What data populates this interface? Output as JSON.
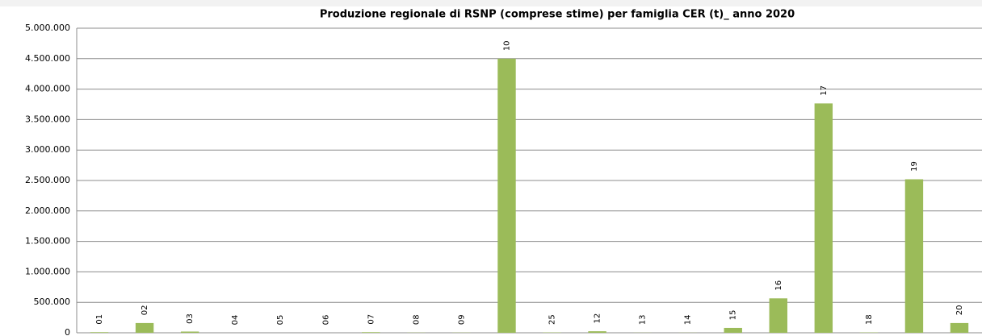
{
  "chart_data": {
    "type": "bar",
    "title": "Produzione regionale di RSNP (comprese stime) per famiglia CER (t)_ anno 2020",
    "categories": [
      "01",
      "02",
      "03",
      "04",
      "05",
      "06",
      "07",
      "08",
      "09",
      "10",
      "25",
      "12",
      "13",
      "14",
      "15",
      "16",
      "17",
      "18",
      "19",
      "20"
    ],
    "values": [
      10000,
      160000,
      20000,
      0,
      0,
      0,
      10000,
      3000,
      3000,
      4500000,
      5000,
      25000,
      2000,
      2000,
      80000,
      565000,
      3765000,
      5000,
      2520000,
      160000
    ],
    "color": "#9bbb59",
    "ylim": [
      0,
      5000000
    ],
    "yticks": [
      {
        "value": 0,
        "label": "0"
      },
      {
        "value": 500000,
        "label": "500.000"
      },
      {
        "value": 1000000,
        "label": "1.000.000"
      },
      {
        "value": 1500000,
        "label": "1.500.000"
      },
      {
        "value": 2000000,
        "label": "2.000.000"
      },
      {
        "value": 2500000,
        "label": "2.500.000"
      },
      {
        "value": 3000000,
        "label": "3.000.000"
      },
      {
        "value": 3500000,
        "label": "3.500.000"
      },
      {
        "value": 4000000,
        "label": "4.000.000"
      },
      {
        "value": 4500000,
        "label": "4.500.000"
      },
      {
        "value": 5000000,
        "label": "5.000.000"
      }
    ],
    "grid": true
  }
}
